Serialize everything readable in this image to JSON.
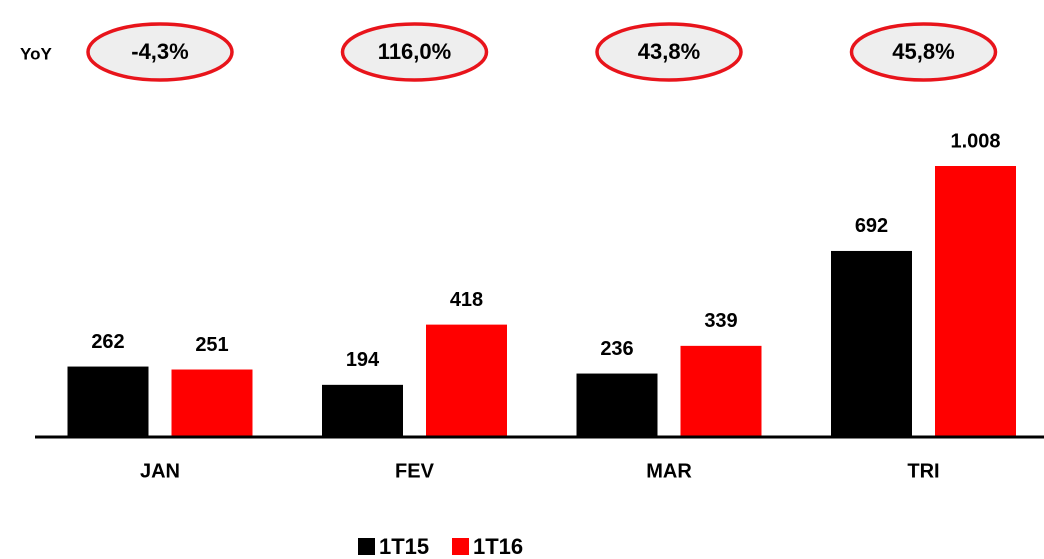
{
  "chart_data": {
    "type": "bar",
    "categories": [
      "JAN",
      "FEV",
      "MAR",
      "TRI"
    ],
    "series": [
      {
        "name": "1T15",
        "color": "#000000",
        "values": [
          262,
          194,
          236,
          692
        ]
      },
      {
        "name": "1T16",
        "color": "#ff0000",
        "values": [
          251,
          418,
          339,
          1008
        ],
        "value_labels": [
          "251",
          "418",
          "339",
          "1.008"
        ]
      }
    ],
    "annotations": {
      "label": "YoY",
      "values": [
        "-4,3%",
        "116,0%",
        "43,8%",
        "45,8%"
      ]
    }
  }
}
